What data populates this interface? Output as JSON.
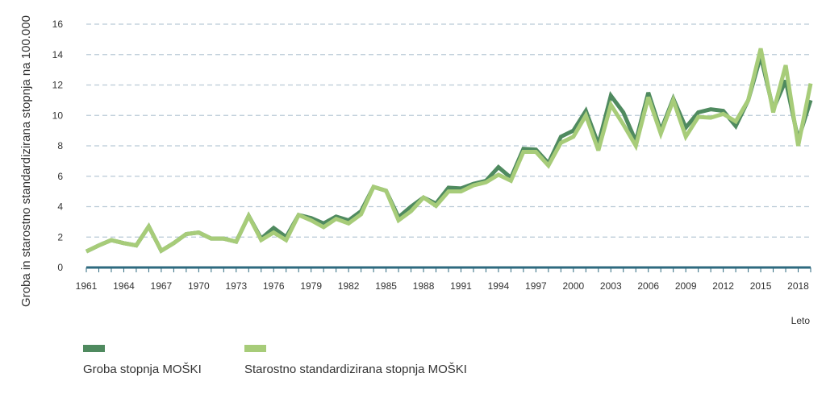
{
  "chart_data": {
    "type": "line",
    "title": "",
    "xlabel": "Leto",
    "ylabel": "Groba in starostno standardizirana stopnja na 100.000",
    "xlim": [
      1961,
      2019
    ],
    "ylim": [
      0,
      16
    ],
    "yticks": [
      0,
      2,
      4,
      6,
      8,
      10,
      12,
      14,
      16
    ],
    "xticks": [
      1961,
      1964,
      1967,
      1970,
      1973,
      1976,
      1979,
      1982,
      1985,
      1988,
      1991,
      1994,
      1997,
      2000,
      2003,
      2006,
      2009,
      2012,
      2015,
      2018
    ],
    "grid": true,
    "legend": "bottom-left",
    "x": [
      1961,
      1962,
      1963,
      1964,
      1965,
      1966,
      1967,
      1968,
      1969,
      1970,
      1971,
      1972,
      1973,
      1974,
      1975,
      1976,
      1977,
      1978,
      1979,
      1980,
      1981,
      1982,
      1983,
      1984,
      1985,
      1986,
      1987,
      1988,
      1989,
      1990,
      1991,
      1992,
      1993,
      1994,
      1995,
      1996,
      1997,
      1998,
      1999,
      2000,
      2001,
      2002,
      2003,
      2004,
      2005,
      2006,
      2007,
      2008,
      2009,
      2010,
      2011,
      2012,
      2013,
      2014,
      2015,
      2016,
      2017,
      2018,
      2019
    ],
    "series": [
      {
        "name": "Groba stopnja MOŠKI",
        "color": "#4f8a5f",
        "values": [
          1.05,
          1.45,
          1.8,
          1.6,
          1.45,
          2.7,
          1.1,
          1.6,
          2.2,
          2.3,
          1.9,
          1.9,
          1.7,
          3.4,
          1.9,
          2.6,
          2.0,
          3.45,
          3.25,
          2.9,
          3.35,
          3.1,
          3.7,
          5.3,
          5.05,
          3.3,
          4.0,
          4.6,
          4.2,
          5.25,
          5.2,
          5.5,
          5.7,
          6.6,
          5.9,
          7.8,
          7.75,
          6.85,
          8.6,
          9.0,
          10.3,
          8.1,
          11.3,
          10.2,
          8.3,
          11.5,
          9.0,
          11.1,
          9.2,
          10.2,
          10.4,
          10.3,
          9.3,
          11.0,
          13.9,
          10.4,
          12.3,
          8.4,
          11.0
        ]
      },
      {
        "name": "Starostno standardizirana stopnja MOŠKI",
        "color": "#a7cc79",
        "values": [
          1.05,
          1.45,
          1.8,
          1.6,
          1.45,
          2.7,
          1.1,
          1.6,
          2.2,
          2.3,
          1.9,
          1.9,
          1.7,
          3.4,
          1.8,
          2.3,
          1.8,
          3.45,
          3.1,
          2.65,
          3.2,
          2.9,
          3.5,
          5.3,
          5.05,
          3.1,
          3.7,
          4.6,
          4.05,
          5.0,
          5.0,
          5.4,
          5.6,
          6.1,
          5.7,
          7.6,
          7.6,
          6.7,
          8.2,
          8.6,
          10.0,
          7.7,
          10.7,
          9.4,
          8.0,
          11.2,
          8.8,
          11.0,
          8.6,
          9.9,
          9.85,
          10.1,
          9.6,
          11.0,
          14.4,
          10.2,
          13.3,
          8.0,
          12.1
        ]
      }
    ]
  }
}
